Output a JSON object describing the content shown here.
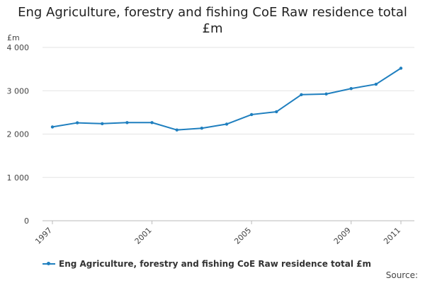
{
  "chart_data": {
    "type": "line",
    "title": "Eng Agriculture, forestry and fishing CoE Raw residence total £m",
    "ylabel": "£m",
    "xlabel": "",
    "x": [
      1997,
      1998,
      1999,
      2000,
      2001,
      2002,
      2003,
      2004,
      2005,
      2006,
      2007,
      2008,
      2009,
      2010,
      2011
    ],
    "x_tick_labels": [
      "1997",
      "2001",
      "2005",
      "2009",
      "2011"
    ],
    "x_tick_values": [
      1997,
      2001,
      2005,
      2009,
      2011
    ],
    "y_tick_labels": [
      "0",
      "1 000",
      "2 000",
      "3 000",
      "4 000"
    ],
    "y_tick_values": [
      0,
      1000,
      2000,
      3000,
      4000
    ],
    "ylim": [
      0,
      4000
    ],
    "xlim": [
      1997,
      2011
    ],
    "grid": "horizontal",
    "legend_position": "bottom",
    "series": [
      {
        "name": "Eng Agriculture, forestry and fishing CoE Raw residence total £m",
        "color": "#1f7fbf",
        "values": [
          2165,
          2260,
          2240,
          2265,
          2265,
          2095,
          2135,
          2230,
          2450,
          2515,
          2910,
          2925,
          3050,
          3150,
          3520
        ]
      }
    ]
  },
  "source_label": "Source:"
}
